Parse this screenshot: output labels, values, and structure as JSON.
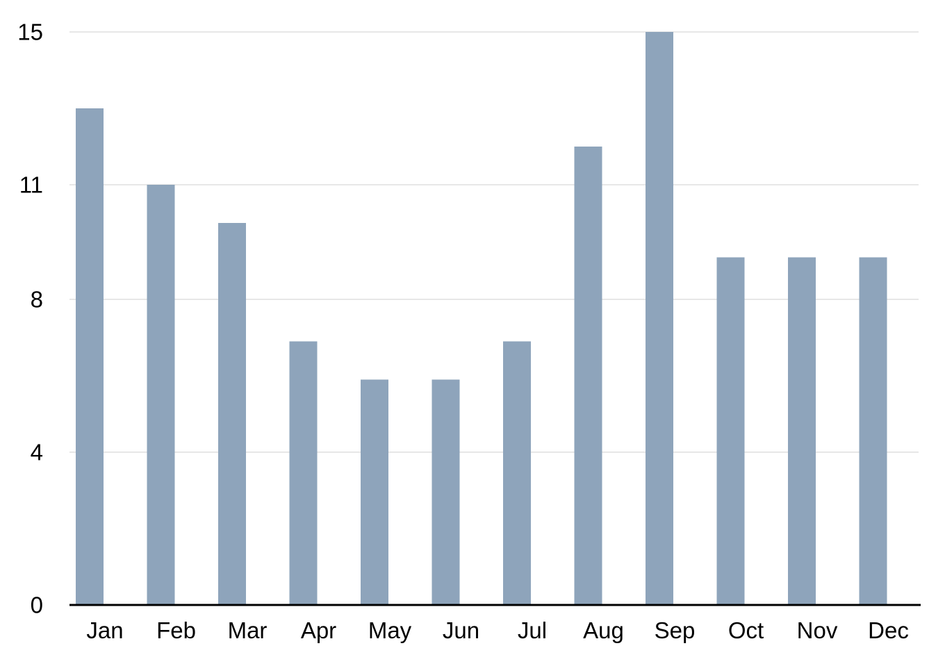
{
  "chart_data": {
    "type": "bar",
    "title": "",
    "xlabel": "",
    "ylabel": "",
    "categories": [
      "Jan",
      "Feb",
      "Mar",
      "Apr",
      "May",
      "Jun",
      "Jul",
      "Aug",
      "Sep",
      "Oct",
      "Nov",
      "Dec"
    ],
    "values": [
      13,
      11,
      10,
      6.9,
      5.9,
      5.9,
      6.9,
      12,
      15,
      9.1,
      9.1,
      9.1
    ],
    "y_ticks": [
      0,
      4,
      8,
      11,
      15
    ],
    "y_tick_labels": [
      "0",
      "4",
      "8",
      "11",
      "15"
    ],
    "ylim": [
      0,
      15
    ],
    "grid": true,
    "legend": "none",
    "colors": {
      "bar": "#8ea4bb",
      "grid": "#cfcfcf",
      "axis": "#000000"
    }
  }
}
